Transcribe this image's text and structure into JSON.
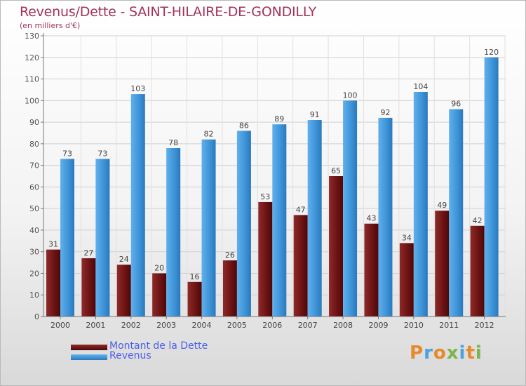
{
  "chart_data": {
    "type": "bar",
    "title": "Revenus/Dette - SAINT-HILAIRE-DE-GONDILLY",
    "subtitle": "(en milliers d'€)",
    "categories": [
      "2000",
      "2001",
      "2002",
      "2003",
      "2004",
      "2005",
      "2006",
      "2007",
      "2008",
      "2009",
      "2010",
      "2011",
      "2012"
    ],
    "series": [
      {
        "name": "Montant de la Dette",
        "color": "#7a1a1a",
        "values": [
          31,
          27,
          24,
          20,
          16,
          26,
          53,
          47,
          65,
          43,
          34,
          49,
          42
        ]
      },
      {
        "name": "Revenus",
        "color": "#4a9fe0",
        "values": [
          73,
          73,
          103,
          78,
          82,
          86,
          89,
          91,
          100,
          92,
          104,
          96,
          120
        ]
      }
    ],
    "ylim": [
      0,
      130
    ],
    "yticks": [
      0,
      10,
      20,
      30,
      40,
      50,
      60,
      70,
      80,
      90,
      100,
      110,
      120,
      130
    ],
    "grid": true,
    "legend": "bottom-left"
  },
  "branding": {
    "logo_text": "Proxiti",
    "logo_colors": [
      "#e8892a",
      "#4aa3df",
      "#e8892a",
      "#7ab648",
      "#4aa3df",
      "#e8892a",
      "#7ab648"
    ]
  }
}
